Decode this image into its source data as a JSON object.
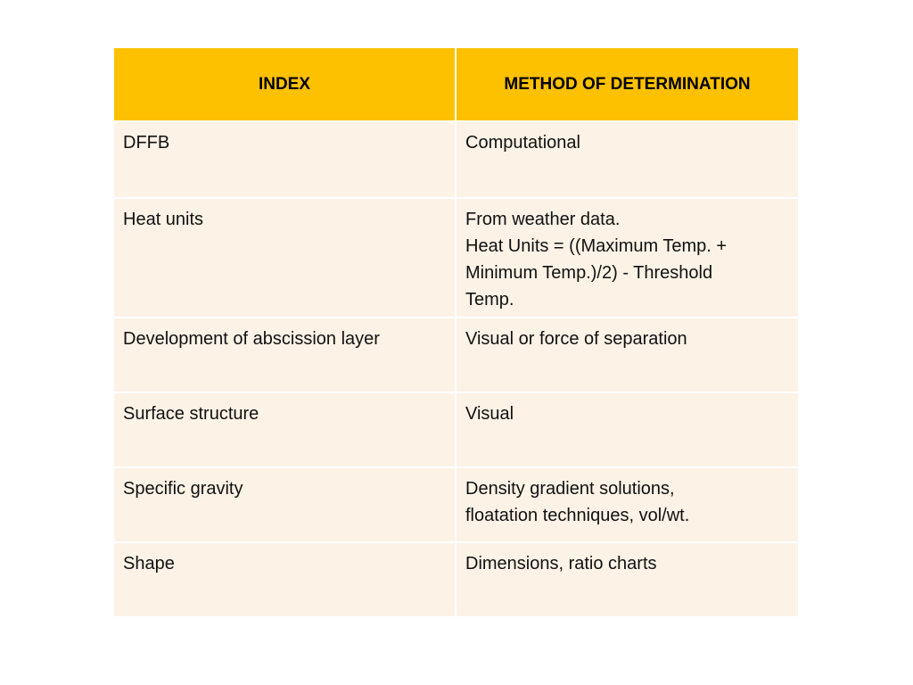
{
  "colors": {
    "header_bg": "#fdc100",
    "row_bg": "#fdf2e6"
  },
  "table": {
    "headers": [
      "INDEX",
      "METHOD OF DETERMINATION"
    ],
    "rows": [
      {
        "index": "DFFB",
        "method": "Computational"
      },
      {
        "index": "Heat units",
        "method": "From weather data.\nHeat Units = ((Maximum Temp. +\nMinimum Temp.)/2) - Threshold\nTemp."
      },
      {
        "index": "Development of abscission layer",
        "method": " Visual or force of  separation"
      },
      {
        "index": "Surface structure",
        "method": "Visual"
      },
      {
        "index": "Specific gravity",
        "method": "Density gradient solutions,\nfloatation techniques, vol/wt."
      },
      {
        "index": "Shape",
        "method": "Dimensions, ratio charts"
      }
    ]
  }
}
